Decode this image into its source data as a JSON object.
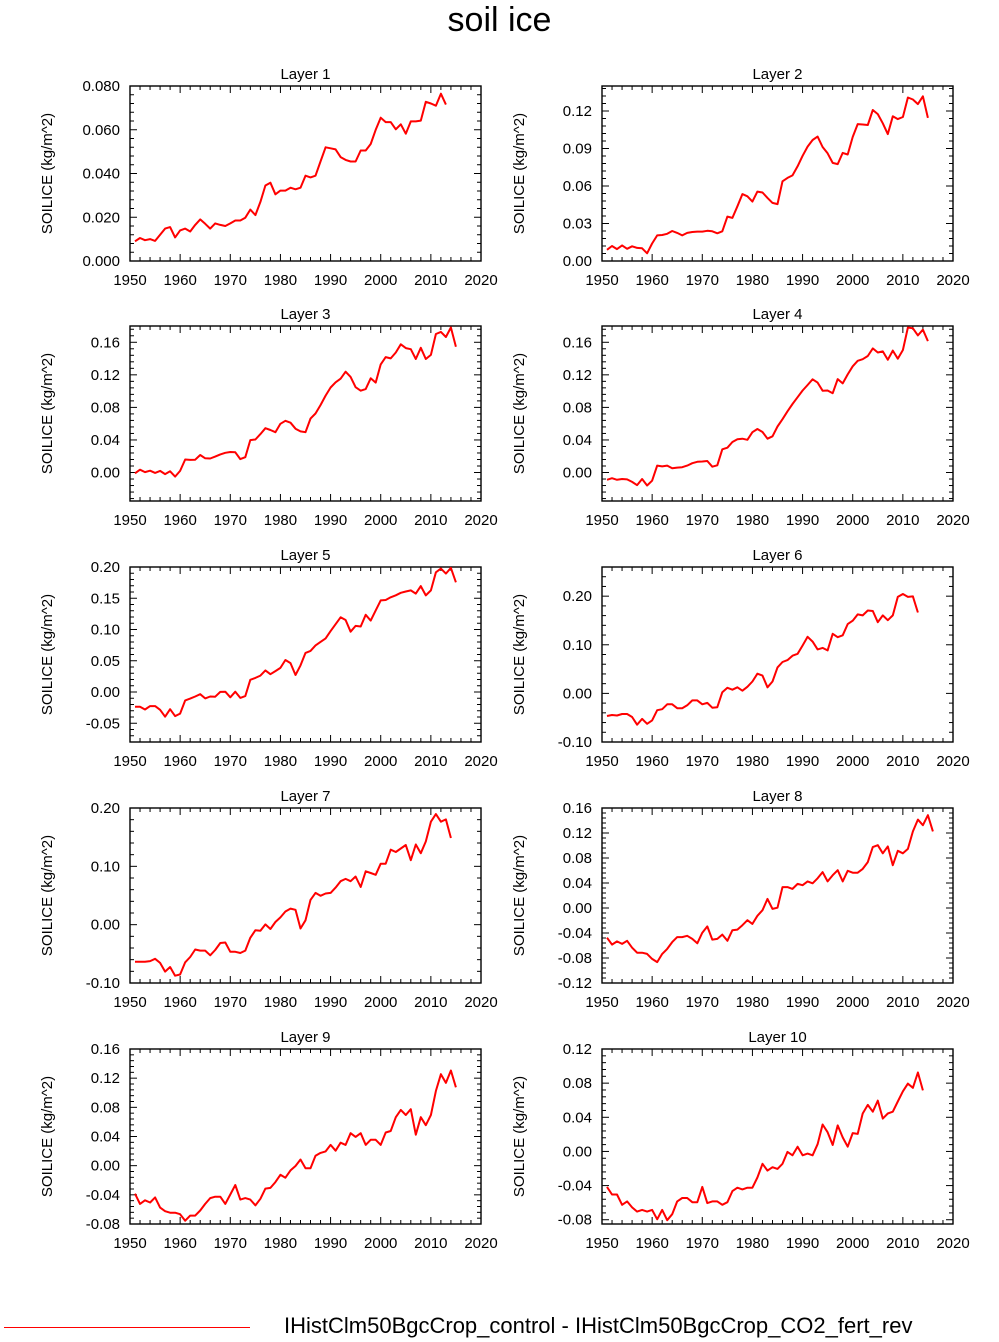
{
  "title": "soil ice",
  "legend": {
    "label": "IHistClm50BgcCrop_control - IHistClm50BgcCrop_CO2_fert_rev",
    "color": "#ff0000"
  },
  "chart_data": [
    {
      "type": "line",
      "title": "Layer 1",
      "xlabel": "",
      "ylabel": "SOILICE  (kg/m^2)",
      "xlim": [
        1950,
        2020
      ],
      "ylim": [
        0.0,
        0.08
      ],
      "xticks": [
        "1950",
        "1960",
        "1970",
        "1980",
        "1990",
        "2000",
        "2010",
        "2020"
      ],
      "yticks": [
        "0.000",
        "0.020",
        "0.040",
        "0.060",
        "0.080"
      ],
      "series": [
        {
          "color": "#ff0000",
          "x_start": 1951,
          "values": [
            0.009,
            0.0105,
            0.0095,
            0.01,
            0.0092,
            0.012,
            0.0148,
            0.0155,
            0.0108,
            0.014,
            0.0148,
            0.0135,
            0.0165,
            0.019,
            0.017,
            0.0148,
            0.0172,
            0.0165,
            0.016,
            0.0172,
            0.0185,
            0.0185,
            0.0198,
            0.0235,
            0.021,
            0.027,
            0.0345,
            0.0358,
            0.0305,
            0.0322,
            0.0322,
            0.0335,
            0.0328,
            0.0335,
            0.039,
            0.0382,
            0.039,
            0.0455,
            0.052,
            0.0515,
            0.051,
            0.0475,
            0.0462,
            0.0455,
            0.0455,
            0.0505,
            0.0505,
            0.0535,
            0.06,
            0.0655,
            0.0635,
            0.0635,
            0.0602,
            0.0625,
            0.0582,
            0.0638,
            0.0638,
            0.0642,
            0.0728,
            0.072,
            0.071,
            0.0765,
            0.0715
          ]
        }
      ]
    },
    {
      "type": "line",
      "title": "Layer 2",
      "xlabel": "",
      "ylabel": "SOILICE  (kg/m^2)",
      "xlim": [
        1950,
        2020
      ],
      "ylim": [
        0.0,
        0.14
      ],
      "xticks": [
        "1950",
        "1960",
        "1970",
        "1980",
        "1990",
        "2000",
        "2010",
        "2020"
      ],
      "yticks": [
        "0.00",
        "0.03",
        "0.06",
        "0.09",
        "0.12"
      ],
      "series": [
        {
          "color": "#ff0000",
          "x_start": 1951,
          "values": [
            0.009,
            0.012,
            0.0095,
            0.0125,
            0.0098,
            0.0118,
            0.0105,
            0.0102,
            0.0062,
            0.014,
            0.0205,
            0.0208,
            0.0218,
            0.024,
            0.0225,
            0.0205,
            0.0225,
            0.0232,
            0.0235,
            0.0235,
            0.0242,
            0.0238,
            0.0222,
            0.0238,
            0.0355,
            0.0345,
            0.0438,
            0.0535,
            0.0518,
            0.0475,
            0.0555,
            0.0548,
            0.0505,
            0.0465,
            0.0455,
            0.0638,
            0.0665,
            0.0685,
            0.0758,
            0.0842,
            0.0915,
            0.0968,
            0.0995,
            0.0912,
            0.0862,
            0.0785,
            0.0775,
            0.0865,
            0.0852,
            0.0992,
            0.1095,
            0.1092,
            0.1088,
            0.1208,
            0.1175,
            0.1102,
            0.1015,
            0.1158,
            0.1135,
            0.1152,
            0.1308,
            0.1292,
            0.1255,
            0.1318,
            0.1145
          ]
        }
      ]
    },
    {
      "type": "line",
      "title": "Layer 3",
      "xlabel": "",
      "ylabel": "SOILICE  (kg/m^2)",
      "xlim": [
        1950,
        2020
      ],
      "ylim": [
        -0.035,
        0.18
      ],
      "xticks": [
        "1950",
        "1960",
        "1970",
        "1980",
        "1990",
        "2000",
        "2010",
        "2020"
      ],
      "yticks": [
        "0.00",
        "0.04",
        "0.08",
        "0.12",
        "0.16"
      ],
      "series": [
        {
          "color": "#ff0000",
          "x_start": 1951,
          "values": [
            -0.001,
            0.0035,
            0.0005,
            0.0022,
            -0.0005,
            0.002,
            -0.002,
            0.0015,
            -0.005,
            0.002,
            0.016,
            0.0155,
            0.0158,
            0.0215,
            0.0175,
            0.0172,
            0.0195,
            0.0222,
            0.0242,
            0.0252,
            0.0248,
            0.0165,
            0.0188,
            0.0398,
            0.0405,
            0.0472,
            0.0545,
            0.0522,
            0.0495,
            0.0598,
            0.0635,
            0.0612,
            0.0538,
            0.0505,
            0.0495,
            0.0662,
            0.0725,
            0.0828,
            0.0945,
            0.1045,
            0.1108,
            0.1152,
            0.1238,
            0.1175,
            0.1048,
            0.1005,
            0.1025,
            0.1158,
            0.1105,
            0.1328,
            0.1418,
            0.1402,
            0.1475,
            0.1575,
            0.1528,
            0.1515,
            0.1395,
            0.1532,
            0.1395,
            0.1445,
            0.1702,
            0.1728,
            0.1665,
            0.1782,
            0.1545
          ]
        }
      ]
    },
    {
      "type": "line",
      "title": "Layer 4",
      "xlabel": "",
      "ylabel": "SOILICE  (kg/m^2)",
      "xlim": [
        1950,
        2020
      ],
      "ylim": [
        -0.035,
        0.18
      ],
      "xticks": [
        "1950",
        "1960",
        "1970",
        "1980",
        "1990",
        "2000",
        "2010",
        "2020"
      ],
      "yticks": [
        "0.00",
        "0.04",
        "0.08",
        "0.12",
        "0.16"
      ],
      "series": [
        {
          "color": "#ff0000",
          "x_start": 1951,
          "values": [
            -0.009,
            -0.007,
            -0.009,
            -0.008,
            -0.0085,
            -0.0115,
            -0.0155,
            -0.008,
            -0.016,
            -0.01,
            0.0085,
            0.0075,
            0.0085,
            0.0052,
            0.006,
            0.0065,
            0.0085,
            0.0115,
            0.0132,
            0.0135,
            0.0142,
            0.0072,
            0.0088,
            0.0285,
            0.0305,
            0.0375,
            0.0408,
            0.0415,
            0.0402,
            0.0495,
            0.0535,
            0.0498,
            0.0415,
            0.0445,
            0.0565,
            0.0655,
            0.0752,
            0.0842,
            0.0925,
            0.1008,
            0.1075,
            0.1145,
            0.1105,
            0.1005,
            0.1008,
            0.0975,
            0.1148,
            0.1095,
            0.1205,
            0.1305,
            0.1372,
            0.1392,
            0.1432,
            0.1525,
            0.1475,
            0.1488,
            0.1385,
            0.1498,
            0.1398,
            0.1505,
            0.1782,
            0.1772,
            0.1685,
            0.1755,
            0.1615
          ]
        }
      ]
    },
    {
      "type": "line",
      "title": "Layer 5",
      "xlabel": "",
      "ylabel": "SOILICE  (kg/m^2)",
      "xlim": [
        1950,
        2020
      ],
      "ylim": [
        -0.08,
        0.2
      ],
      "xticks": [
        "1950",
        "1960",
        "1970",
        "1980",
        "1990",
        "2000",
        "2010",
        "2020"
      ],
      "yticks": [
        "-0.05",
        "0.00",
        "0.05",
        "0.10",
        "0.15",
        "0.20"
      ],
      "series": [
        {
          "color": "#ff0000",
          "x_start": 1951,
          "values": [
            -0.0235,
            -0.0235,
            -0.028,
            -0.0225,
            -0.0225,
            -0.0285,
            -0.0395,
            -0.0275,
            -0.0385,
            -0.0345,
            -0.0135,
            -0.0105,
            -0.0072,
            -0.0035,
            -0.0102,
            -0.0072,
            -0.0075,
            0.0002,
            0.0005,
            -0.0085,
            0.0005,
            -0.0095,
            -0.0065,
            0.0195,
            0.0225,
            0.0262,
            0.0345,
            0.0285,
            0.0335,
            0.0385,
            0.0512,
            0.0462,
            0.0272,
            0.0425,
            0.0625,
            0.0658,
            0.0745,
            0.0802,
            0.0858,
            0.0975,
            0.1085,
            0.1195,
            0.1152,
            0.0965,
            0.1058,
            0.1048,
            0.1235,
            0.1142,
            0.1305,
            0.1465,
            0.1472,
            0.1515,
            0.1548,
            0.1588,
            0.1608,
            0.1625,
            0.1575,
            0.1695,
            0.1545,
            0.1625,
            0.1915,
            0.1975,
            0.1895,
            0.1985,
            0.1755
          ]
        }
      ]
    },
    {
      "type": "line",
      "title": "Layer 6",
      "xlabel": "",
      "ylabel": "SOILICE  (kg/m^2)",
      "xlim": [
        1950,
        2020
      ],
      "ylim": [
        -0.1,
        0.26
      ],
      "xticks": [
        "1950",
        "1960",
        "1970",
        "1980",
        "1990",
        "2000",
        "2010",
        "2020"
      ],
      "yticks": [
        "-0.10",
        "0.00",
        "0.10",
        "0.20"
      ],
      "series": [
        {
          "color": "#ff0000",
          "x_start": 1951,
          "values": [
            -0.0465,
            -0.0445,
            -0.0455,
            -0.0425,
            -0.0425,
            -0.0485,
            -0.0645,
            -0.0525,
            -0.0625,
            -0.0555,
            -0.0345,
            -0.0325,
            -0.0225,
            -0.0225,
            -0.0305,
            -0.0305,
            -0.0245,
            -0.0145,
            -0.0145,
            -0.0225,
            -0.0195,
            -0.0295,
            -0.0285,
            0.0025,
            0.0115,
            0.0075,
            0.0125,
            0.0055,
            0.0135,
            0.0245,
            0.0405,
            0.0365,
            0.0125,
            0.0245,
            0.0535,
            0.0645,
            0.0685,
            0.0775,
            0.0815,
            0.0985,
            0.1165,
            0.1065,
            0.0905,
            0.0935,
            0.0885,
            0.1225,
            0.1155,
            0.1195,
            0.1425,
            0.1495,
            0.1625,
            0.1605,
            0.1705,
            0.1695,
            0.1465,
            0.1605,
            0.1505,
            0.1605,
            0.1985,
            0.2045,
            0.1985,
            0.1995,
            0.1665
          ]
        }
      ]
    },
    {
      "type": "line",
      "title": "Layer 7",
      "xlabel": "",
      "ylabel": "SOILICE  (kg/m^2)",
      "xlim": [
        1950,
        2020
      ],
      "ylim": [
        -0.1,
        0.2
      ],
      "xticks": [
        "1950",
        "1960",
        "1970",
        "1980",
        "1990",
        "2000",
        "2010",
        "2020"
      ],
      "yticks": [
        "-0.10",
        "0.00",
        "0.10",
        "0.20"
      ],
      "series": [
        {
          "color": "#ff0000",
          "x_start": 1951,
          "values": [
            -0.0635,
            -0.0635,
            -0.0635,
            -0.0625,
            -0.0585,
            -0.0655,
            -0.0805,
            -0.0725,
            -0.0875,
            -0.0855,
            -0.0645,
            -0.0555,
            -0.0425,
            -0.0445,
            -0.0445,
            -0.0525,
            -0.0435,
            -0.0315,
            -0.0305,
            -0.0465,
            -0.0465,
            -0.0485,
            -0.0445,
            -0.0225,
            -0.0095,
            -0.0105,
            0.0005,
            -0.0075,
            0.0045,
            0.0125,
            0.0225,
            0.0275,
            0.0255,
            -0.0065,
            0.0075,
            0.0425,
            0.0545,
            0.0495,
            0.0535,
            0.0545,
            0.0635,
            0.0745,
            0.0785,
            0.0745,
            0.0825,
            0.0645,
            0.0915,
            0.0885,
            0.0855,
            0.1045,
            0.1045,
            0.1285,
            0.1245,
            0.1305,
            0.1365,
            0.1105,
            0.1375,
            0.1225,
            0.1425,
            0.1765,
            0.1895,
            0.1765,
            0.1805,
            0.1485
          ]
        }
      ]
    },
    {
      "type": "line",
      "title": "Layer 8",
      "xlabel": "",
      "ylabel": "SOILICE  (kg/m^2)",
      "xlim": [
        1950,
        2020
      ],
      "ylim": [
        -0.12,
        0.16
      ],
      "xticks": [
        "1950",
        "1960",
        "1970",
        "1980",
        "1990",
        "2000",
        "2010",
        "2020"
      ],
      "yticks": [
        "-0.12",
        "-0.08",
        "-0.04",
        "0.00",
        "0.04",
        "0.08",
        "0.12",
        "0.16"
      ],
      "series": [
        {
          "color": "#ff0000",
          "x_start": 1951,
          "values": [
            -0.0475,
            -0.0585,
            -0.0535,
            -0.0575,
            -0.0525,
            -0.0635,
            -0.0715,
            -0.0715,
            -0.0735,
            -0.0815,
            -0.0865,
            -0.0735,
            -0.0655,
            -0.0545,
            -0.0465,
            -0.0465,
            -0.0445,
            -0.0495,
            -0.0565,
            -0.0395,
            -0.0295,
            -0.0505,
            -0.0495,
            -0.0425,
            -0.0525,
            -0.0355,
            -0.0345,
            -0.0275,
            -0.0195,
            -0.0255,
            -0.0125,
            -0.0035,
            0.0145,
            -0.0015,
            0.0005,
            0.0335,
            0.0335,
            0.0305,
            0.0385,
            0.0365,
            0.0425,
            0.0395,
            0.0475,
            0.0575,
            0.0425,
            0.0525,
            0.0605,
            0.0425,
            0.0595,
            0.0565,
            0.0565,
            0.0625,
            0.0735,
            0.0975,
            0.1005,
            0.0875,
            0.0985,
            0.0685,
            0.0915,
            0.0875,
            0.0945,
            0.1225,
            0.1415,
            0.1325,
            0.1485,
            0.1225
          ]
        }
      ]
    },
    {
      "type": "line",
      "title": "Layer 9",
      "xlabel": "",
      "ylabel": "SOILICE  (kg/m^2)",
      "xlim": [
        1950,
        2020
      ],
      "ylim": [
        -0.08,
        0.16
      ],
      "xticks": [
        "1950",
        "1960",
        "1970",
        "1980",
        "1990",
        "2000",
        "2010",
        "2020"
      ],
      "yticks": [
        "-0.08",
        "-0.04",
        "0.00",
        "0.04",
        "0.08",
        "0.12",
        "0.16"
      ],
      "series": [
        {
          "color": "#ff0000",
          "x_start": 1951,
          "values": [
            -0.0385,
            -0.0525,
            -0.0475,
            -0.0505,
            -0.0435,
            -0.0575,
            -0.0625,
            -0.0645,
            -0.0645,
            -0.0665,
            -0.0755,
            -0.0685,
            -0.0685,
            -0.0615,
            -0.0525,
            -0.0445,
            -0.0425,
            -0.0425,
            -0.0525,
            -0.0395,
            -0.0265,
            -0.0465,
            -0.0445,
            -0.0465,
            -0.0545,
            -0.0455,
            -0.0315,
            -0.0305,
            -0.0225,
            -0.0125,
            -0.0165,
            -0.0065,
            -0.0005,
            0.0085,
            -0.0035,
            -0.0035,
            0.0135,
            0.0175,
            0.0195,
            0.0285,
            0.0205,
            0.0315,
            0.0285,
            0.0445,
            0.0395,
            0.0445,
            0.0285,
            0.0355,
            0.0355,
            0.0285,
            0.0455,
            0.0475,
            0.0665,
            0.0765,
            0.0695,
            0.0775,
            0.0425,
            0.0665,
            0.0555,
            0.0695,
            0.1025,
            0.1255,
            0.1135,
            0.1305,
            0.1075
          ]
        }
      ]
    },
    {
      "type": "line",
      "title": "Layer 10",
      "xlabel": "",
      "ylabel": "SOILICE  (kg/m^2)",
      "xlim": [
        1950,
        2020
      ],
      "ylim": [
        -0.085,
        0.12
      ],
      "xticks": [
        "1950",
        "1960",
        "1970",
        "1980",
        "1990",
        "2000",
        "2010",
        "2020"
      ],
      "yticks": [
        "-0.08",
        "-0.04",
        "0.00",
        "0.04",
        "0.08",
        "0.12"
      ],
      "series": [
        {
          "color": "#ff0000",
          "x_start": 1951,
          "values": [
            -0.0415,
            -0.0505,
            -0.0505,
            -0.0625,
            -0.0585,
            -0.0655,
            -0.0705,
            -0.0685,
            -0.0705,
            -0.0685,
            -0.0795,
            -0.0685,
            -0.0805,
            -0.0735,
            -0.0585,
            -0.0545,
            -0.0545,
            -0.0595,
            -0.0595,
            -0.0415,
            -0.0605,
            -0.0585,
            -0.0585,
            -0.0625,
            -0.0595,
            -0.0465,
            -0.0425,
            -0.0445,
            -0.0425,
            -0.0425,
            -0.0305,
            -0.0145,
            -0.0225,
            -0.0185,
            -0.0205,
            -0.0145,
            -0.0005,
            -0.0045,
            0.0055,
            -0.0045,
            -0.0025,
            -0.0045,
            0.0085,
            0.0315,
            0.0225,
            0.0075,
            0.0305,
            0.0165,
            0.0055,
            0.0215,
            0.0205,
            0.0445,
            0.0545,
            0.0465,
            0.0595,
            0.0385,
            0.0445,
            0.0465,
            0.0585,
            0.0705,
            0.0795,
            0.0745,
            0.0925,
            0.0715
          ]
        }
      ]
    }
  ]
}
